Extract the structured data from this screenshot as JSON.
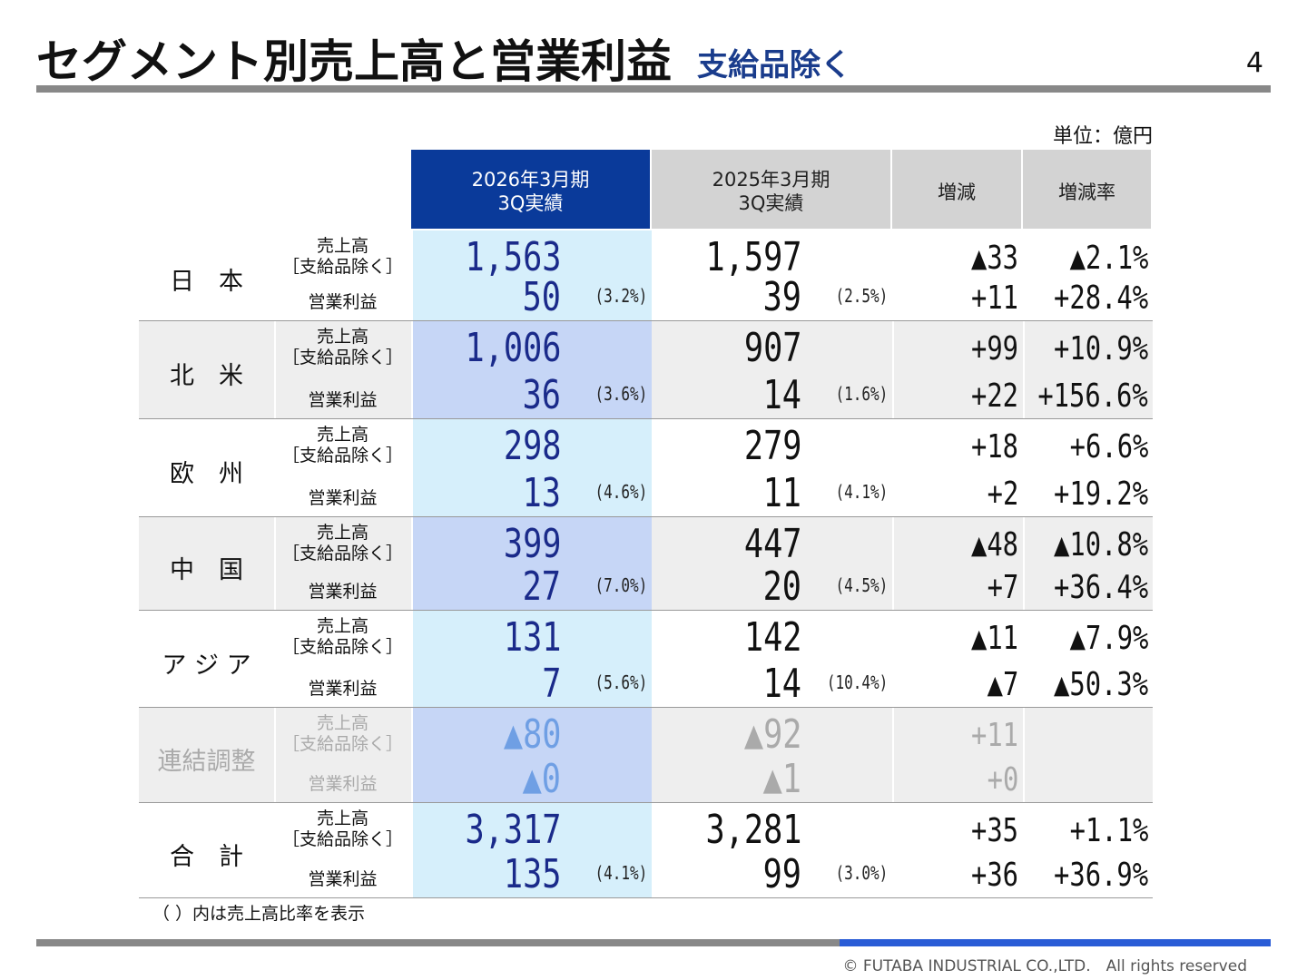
{
  "header": {
    "title": "セグメント別売上高と営業利益",
    "subtitle": "支給品除く",
    "page": "4"
  },
  "unit": "単位：億円",
  "table": {
    "columns": [
      {
        "line1": "2026年3月期",
        "line2": "3Q実績"
      },
      {
        "line1": "2025年3月期",
        "line2": "3Q実績"
      },
      {
        "line1": "増減"
      },
      {
        "line1": "増減率"
      }
    ],
    "rows": [
      {
        "segment": "日　本",
        "sales_label": "売上高",
        "sales_note": "［支給品除く］",
        "op_label": "営業利益",
        "sales": [
          "1,563",
          "1,597",
          "▲33",
          "▲2.1%"
        ],
        "op": [
          "50",
          "39",
          "+11",
          "+28.4%"
        ],
        "ratio": [
          "(3.2%)",
          "(2.5%)"
        ]
      },
      {
        "segment": "北　米",
        "sales_label": "売上高",
        "sales_note": "［支給品除く］",
        "op_label": "営業利益",
        "sales": [
          "1,006",
          "907",
          "+99",
          "+10.9%"
        ],
        "op": [
          "36",
          "14",
          "+22",
          "+156.6%"
        ],
        "ratio": [
          "(3.6%)",
          "(1.6%)"
        ]
      },
      {
        "segment": "欧　州",
        "sales_label": "売上高",
        "sales_note": "［支給品除く］",
        "op_label": "営業利益",
        "sales": [
          "298",
          "279",
          "+18",
          "+6.6%"
        ],
        "op": [
          "13",
          "11",
          "+2",
          "+19.2%"
        ],
        "ratio": [
          "(4.6%)",
          "(4.1%)"
        ]
      },
      {
        "segment": "中　国",
        "sales_label": "売上高",
        "sales_note": "［支給品除く］",
        "op_label": "営業利益",
        "sales": [
          "399",
          "447",
          "▲48",
          "▲10.8%"
        ],
        "op": [
          "27",
          "20",
          "+7",
          "+36.4%"
        ],
        "ratio": [
          "(7.0%)",
          "(4.5%)"
        ]
      },
      {
        "segment": "ア ジ ア",
        "sales_label": "売上高",
        "sales_note": "［支給品除く］",
        "op_label": "営業利益",
        "sales": [
          "131",
          "142",
          "▲11",
          "▲7.9%"
        ],
        "op": [
          "7",
          "14",
          "▲7",
          "▲50.3%"
        ],
        "ratio": [
          "(5.6%)",
          "(10.4%)"
        ]
      },
      {
        "segment": "連結調整",
        "sales_label": "売上高",
        "sales_note": "［支給品除く］",
        "op_label": "営業利益",
        "sales": [
          "▲80",
          "▲92",
          "+11"
        ],
        "op": [
          "▲0",
          "▲1",
          "+0"
        ]
      },
      {
        "segment": "合　計",
        "sales_label": "売上高",
        "sales_note": "［支給品除く］",
        "op_label": "営業利益",
        "sales": [
          "3,317",
          "3,281",
          "+35",
          "+1.1%"
        ],
        "op": [
          "135",
          "99",
          "+36",
          "+36.9%"
        ],
        "ratio": [
          "(4.1%)",
          "(3.0%)"
        ]
      }
    ]
  },
  "footnote": "（ ）内は売上高比率を表示",
  "footer": "© FUTABA INDUSTRIAL CO.,LTD.　All rights reserved"
}
